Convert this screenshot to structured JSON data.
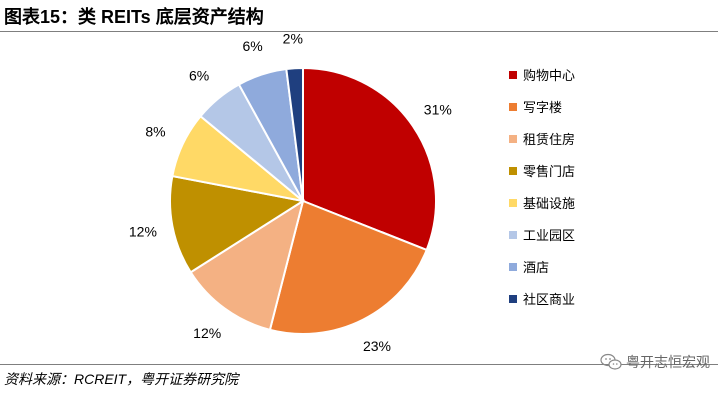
{
  "title": "图表15：类 REITs 底层资产结构",
  "source": "资料来源：RCREIT，粤开证券研究院",
  "watermark": {
    "text": "粤开志恒宏观",
    "icon": "wechat-icon"
  },
  "chart_data": {
    "type": "pie",
    "title": "图表15：类 REITs 底层资产结构",
    "start_angle_deg": 0,
    "direction": "clockwise",
    "legend_position": "right",
    "slices": [
      {
        "name": "购物中心",
        "value": 31,
        "label": "31%",
        "color": "#c00000"
      },
      {
        "name": "写字楼",
        "value": 23,
        "label": "23%",
        "color": "#ed7d31"
      },
      {
        "name": "租赁住房",
        "value": 12,
        "label": "12%",
        "color": "#f4b183"
      },
      {
        "name": "零售门店",
        "value": 12,
        "label": "12%",
        "color": "#bf9000"
      },
      {
        "name": "基础设施",
        "value": 8,
        "label": "8%",
        "color": "#ffd966"
      },
      {
        "name": "工业园区",
        "value": 6,
        "label": "6%",
        "color": "#b4c7e7"
      },
      {
        "name": "酒店",
        "value": 6,
        "label": "6%",
        "color": "#8faadc"
      },
      {
        "name": "社区商业",
        "value": 2,
        "label": "2%",
        "color": "#1f3f7f"
      }
    ]
  }
}
